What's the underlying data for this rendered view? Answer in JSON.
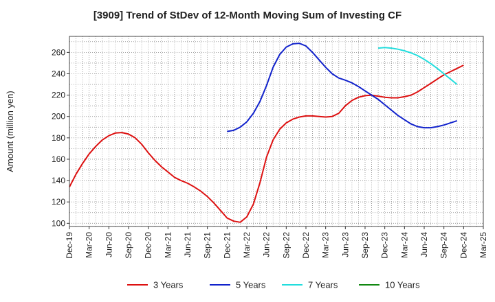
{
  "chart_data": {
    "type": "line",
    "title": "[3909]  Trend of StDev of 12-Month Moving Sum of Investing CF",
    "xlabel": "",
    "ylabel": "Amount (million yen)",
    "ylim": [
      97,
      275
    ],
    "yticks": [
      100,
      120,
      140,
      160,
      180,
      200,
      220,
      240,
      260
    ],
    "x_tick_labels": [
      "Dec-19",
      "Mar-20",
      "Jun-20",
      "Sep-20",
      "Dec-20",
      "Mar-21",
      "Jun-21",
      "Sep-21",
      "Dec-21",
      "Mar-22",
      "Jun-22",
      "Sep-22",
      "Dec-22",
      "Mar-23",
      "Jun-23",
      "Sep-23",
      "Dec-23",
      "Mar-24",
      "Jun-24",
      "Sep-24",
      "Dec-24",
      "Mar-25"
    ],
    "grid": true,
    "legend_position": "bottom",
    "series": [
      {
        "name": "3 Years",
        "color": "#dd1111",
        "points": [
          [
            0,
            134
          ],
          [
            1,
            146
          ],
          [
            2,
            156
          ],
          [
            3,
            165
          ],
          [
            4,
            172
          ],
          [
            5,
            178
          ],
          [
            6,
            182
          ],
          [
            7,
            184.5
          ],
          [
            8,
            185
          ],
          [
            9,
            183.5
          ],
          [
            10,
            180
          ],
          [
            11,
            174
          ],
          [
            12,
            166
          ],
          [
            13,
            159
          ],
          [
            14,
            153
          ],
          [
            15,
            148
          ],
          [
            16,
            143
          ],
          [
            17,
            140
          ],
          [
            18,
            137.5
          ],
          [
            19,
            134
          ],
          [
            20,
            130
          ],
          [
            21,
            125
          ],
          [
            22,
            119
          ],
          [
            23,
            112
          ],
          [
            24,
            105
          ],
          [
            25,
            102
          ],
          [
            26,
            101
          ],
          [
            27,
            106
          ],
          [
            28,
            118
          ],
          [
            29,
            138
          ],
          [
            30,
            162
          ],
          [
            31,
            178
          ],
          [
            32,
            188
          ],
          [
            33,
            194
          ],
          [
            34,
            197.5
          ],
          [
            35,
            199.5
          ],
          [
            36,
            200.5
          ],
          [
            37,
            200.5
          ],
          [
            38,
            200
          ],
          [
            39,
            199.5
          ],
          [
            40,
            200
          ],
          [
            41,
            203
          ],
          [
            42,
            210
          ],
          [
            43,
            215
          ],
          [
            44,
            218
          ],
          [
            45,
            219.5
          ],
          [
            46,
            220
          ],
          [
            47,
            219
          ],
          [
            48,
            218
          ],
          [
            49,
            217.5
          ],
          [
            50,
            217.5
          ],
          [
            51,
            218.5
          ],
          [
            52,
            220
          ],
          [
            53,
            223
          ],
          [
            54,
            227
          ],
          [
            55,
            231
          ],
          [
            56,
            235
          ],
          [
            57,
            239
          ],
          [
            58,
            242
          ],
          [
            59,
            245
          ],
          [
            60,
            248
          ]
        ]
      },
      {
        "name": "5 Years",
        "color": "#1122cc",
        "points": [
          [
            24,
            186
          ],
          [
            25,
            187
          ],
          [
            26,
            190
          ],
          [
            27,
            195
          ],
          [
            28,
            203
          ],
          [
            29,
            214
          ],
          [
            30,
            229
          ],
          [
            31,
            246
          ],
          [
            32,
            258
          ],
          [
            33,
            265
          ],
          [
            34,
            268
          ],
          [
            35,
            268.5
          ],
          [
            36,
            266
          ],
          [
            37,
            260
          ],
          [
            38,
            253
          ],
          [
            39,
            246
          ],
          [
            40,
            240
          ],
          [
            41,
            236
          ],
          [
            42,
            234
          ],
          [
            43,
            231.5
          ],
          [
            44,
            228
          ],
          [
            45,
            224
          ],
          [
            46,
            220
          ],
          [
            47,
            216
          ],
          [
            48,
            211
          ],
          [
            49,
            206
          ],
          [
            50,
            201
          ],
          [
            51,
            197
          ],
          [
            52,
            193
          ],
          [
            53,
            190.5
          ],
          [
            54,
            189.5
          ],
          [
            55,
            189.5
          ],
          [
            56,
            190.5
          ],
          [
            57,
            192
          ],
          [
            58,
            194
          ],
          [
            59,
            196
          ]
        ]
      },
      {
        "name": "7 Years",
        "color": "#22dddd",
        "points": [
          [
            47,
            264
          ],
          [
            48,
            264.5
          ],
          [
            49,
            264
          ],
          [
            50,
            263
          ],
          [
            51,
            261.5
          ],
          [
            52,
            259.5
          ],
          [
            53,
            257
          ],
          [
            54,
            253.5
          ],
          [
            55,
            249.5
          ],
          [
            56,
            245
          ],
          [
            57,
            240
          ],
          [
            58,
            235
          ],
          [
            59,
            230
          ]
        ]
      },
      {
        "name": "10 Years",
        "color": "#118811",
        "points": []
      }
    ]
  }
}
